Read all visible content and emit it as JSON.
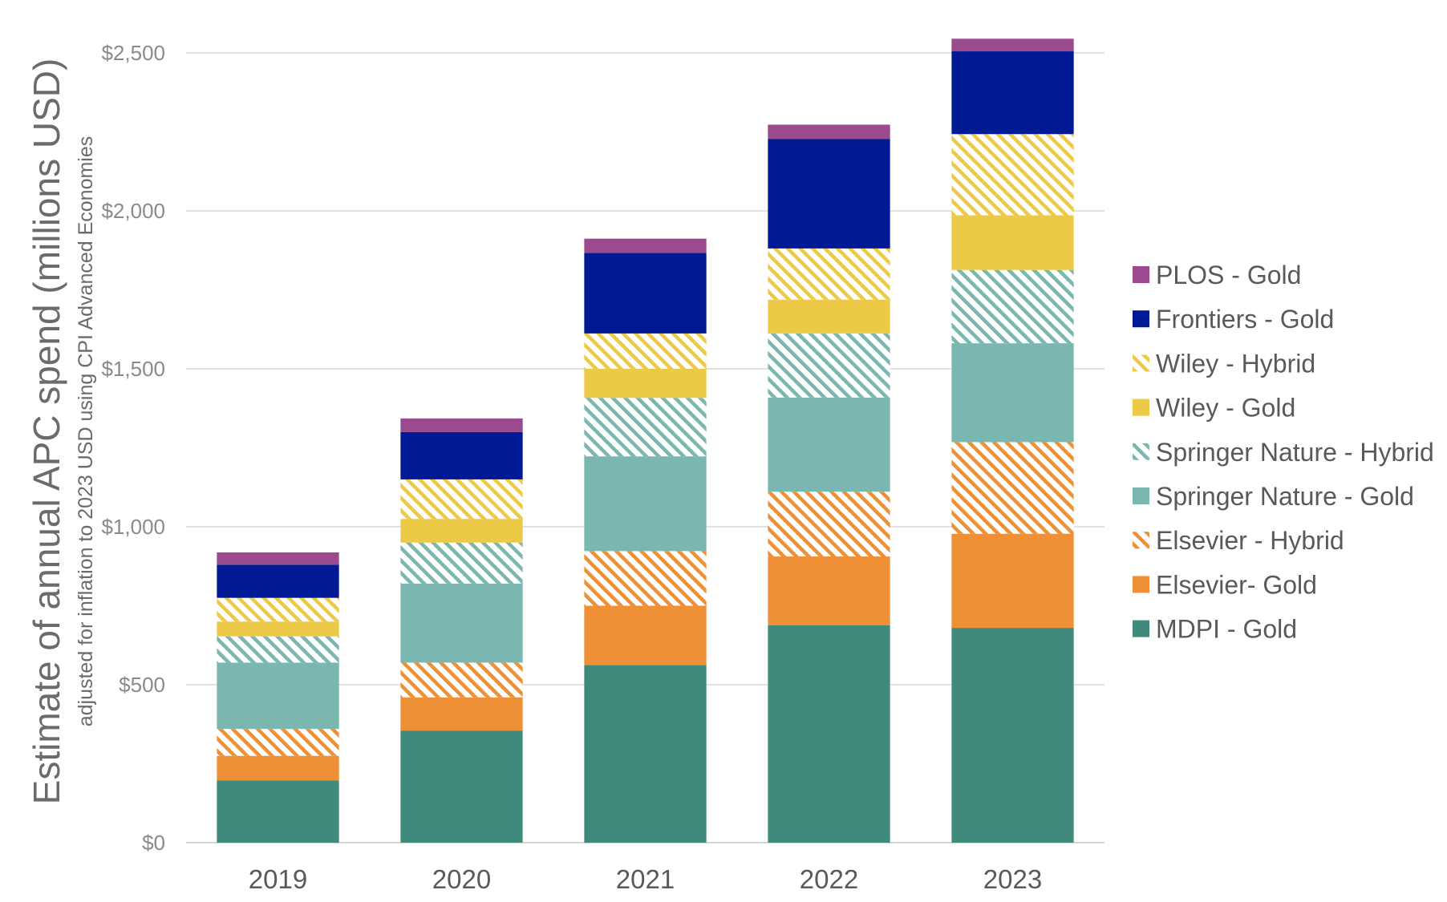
{
  "chart_data": {
    "type": "bar",
    "stacked": true,
    "ylabel": "Estimate of annual APC spend (millions USD)",
    "ylabel_sub": "adjusted for inflation to 2023 USD using CPI Advanced Economies",
    "xlabel": "",
    "ylim": [
      0,
      2500
    ],
    "yticks": [
      {
        "value": 0,
        "label": "$0"
      },
      {
        "value": 500,
        "label": "$500"
      },
      {
        "value": 1000,
        "label": "$1,000"
      },
      {
        "value": 1500,
        "label": "$1,500"
      },
      {
        "value": 2000,
        "label": "$2,000"
      },
      {
        "value": 2500,
        "label": "$2,500"
      }
    ],
    "grid": true,
    "legend_position": "right",
    "categories": [
      "2019",
      "2020",
      "2021",
      "2022",
      "2023"
    ],
    "series": [
      {
        "name": "MDPI - Gold",
        "color": "#3f8a7b",
        "pattern": "solid",
        "values": [
          197,
          355,
          562,
          688,
          680
        ]
      },
      {
        "name": "Elsevier- Gold",
        "color": "#ef8f36",
        "pattern": "solid",
        "values": [
          78,
          105,
          188,
          218,
          298
        ]
      },
      {
        "name": "Elsevier - Hybrid",
        "color": "#ef8f36",
        "pattern": "hatched",
        "values": [
          85,
          110,
          173,
          205,
          290
        ]
      },
      {
        "name": "Springer Nature - Gold",
        "color": "#79b7b0",
        "pattern": "solid",
        "values": [
          210,
          250,
          300,
          298,
          313
        ]
      },
      {
        "name": "Springer Nature - Hybrid",
        "color": "#79b7b0",
        "pattern": "hatched",
        "values": [
          83,
          130,
          185,
          203,
          232
        ]
      },
      {
        "name": "Wiley - Gold",
        "color": "#edc948",
        "pattern": "solid",
        "values": [
          47,
          75,
          92,
          107,
          173
        ]
      },
      {
        "name": "Wiley - Hybrid",
        "color": "#edc948",
        "pattern": "hatched",
        "values": [
          75,
          125,
          112,
          162,
          257
        ]
      },
      {
        "name": "Frontiers - Gold",
        "color": "#001a96",
        "pattern": "solid",
        "values": [
          105,
          150,
          255,
          347,
          262
        ]
      },
      {
        "name": "PLOS - Gold",
        "color": "#9b4a8e",
        "pattern": "solid",
        "values": [
          39,
          43,
          45,
          45,
          40
        ]
      }
    ]
  }
}
